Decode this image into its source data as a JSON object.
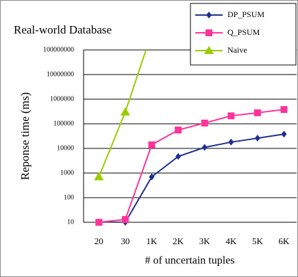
{
  "chart_data": {
    "type": "line",
    "title": "Real-world Database",
    "x_label": "# of uncertain tuples",
    "y_label": "Reponse time (ms)",
    "categories": [
      "20",
      "30",
      "1K",
      "2K",
      "3K",
      "4K",
      "5K",
      "6K"
    ],
    "series": [
      {
        "name": "DP_PSUM",
        "color": "#1f2f8f",
        "marker": "diamond",
        "values": [
          10,
          10,
          700,
          4700,
          11000,
          18000,
          26000,
          38000
        ]
      },
      {
        "name": "Q_PSUM",
        "color": "#ff3399",
        "marker": "square",
        "values": [
          10,
          13,
          14000,
          56000,
          107000,
          210000,
          280000,
          380000
        ]
      },
      {
        "name": "Naive",
        "color": "#99cc00",
        "marker": "triangle",
        "values": [
          700,
          300000,
          500000000,
          null,
          null,
          null,
          null,
          null
        ]
      }
    ],
    "log_y": true,
    "ylim": [
      10,
      100000000
    ],
    "yticks": [
      10,
      100,
      1000,
      10000,
      100000,
      1000000,
      10000000,
      100000000
    ],
    "grid": true,
    "legend": "top-right"
  }
}
